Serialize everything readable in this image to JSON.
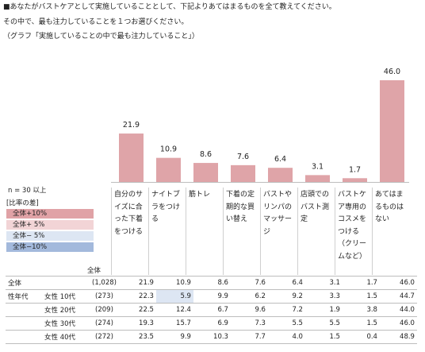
{
  "question": {
    "line1": "■あなたがバストケアとして実施していることとして、下記よりあてはまるものを全て教えてください。",
    "line2": "その中で、最も注力していることを１つお選びください。",
    "line3": "（グラフ「実施していることの中で最も注力していること」）"
  },
  "sample_note": "n = 30  以上",
  "legend": {
    "title": "[比率の差]",
    "items": [
      {
        "label": "全体+10%",
        "color": "#e0a2a6"
      },
      {
        "label": "全体+ 5%",
        "color": "#f2d4d6"
      },
      {
        "label": "全体− 5%",
        "color": "#dde6f3"
      },
      {
        "label": "全体−10%",
        "color": "#a3b9dc"
      }
    ]
  },
  "total_header": "全体",
  "chart_data": {
    "type": "bar",
    "categories": [
      "自分のサイズに合った下着をつける",
      "ナイトブラをつける",
      "筋トレ",
      "下着の定期的な買い替え",
      "バストやリンパのマッサージ",
      "店頭でのバスト測定",
      "バストケア専用のコスメをつける（クリームなど）",
      "あてはまるものはない"
    ],
    "values": [
      21.9,
      10.9,
      8.6,
      7.6,
      6.4,
      3.1,
      1.7,
      46.0
    ],
    "value_labels": [
      "21.9",
      "10.9",
      "8.6",
      "7.6",
      "6.4",
      "3.1",
      "1.7",
      "46.0"
    ],
    "bar_color": "#dfa4a8",
    "ylim": [
      0,
      46.0
    ]
  },
  "table": {
    "rows": [
      {
        "group": "全体",
        "sub": "",
        "n": "(1,028)",
        "vals": [
          "21.9",
          "10.9",
          "8.6",
          "7.6",
          "6.4",
          "3.1",
          "1.7",
          "46.0"
        ],
        "hl": [
          0,
          0,
          0,
          0,
          0,
          0,
          0,
          0
        ]
      },
      {
        "group": "性年代",
        "sub": "女性 10代",
        "n": "(273)",
        "vals": [
          "22.3",
          "5.9",
          "9.9",
          "6.2",
          "9.2",
          "3.3",
          "1.5",
          "44.7"
        ],
        "hl": [
          0,
          2,
          0,
          0,
          0,
          0,
          0,
          0
        ]
      },
      {
        "group": "",
        "sub": "女性 20代",
        "n": "(209)",
        "vals": [
          "22.5",
          "12.4",
          "6.7",
          "9.6",
          "7.2",
          "1.9",
          "3.8",
          "44.0"
        ],
        "hl": [
          0,
          0,
          0,
          0,
          0,
          0,
          0,
          0
        ]
      },
      {
        "group": "",
        "sub": "女性 30代",
        "n": "(274)",
        "vals": [
          "19.3",
          "15.7",
          "6.9",
          "7.3",
          "5.5",
          "5.5",
          "1.5",
          "46.0"
        ],
        "hl": [
          0,
          0,
          0,
          0,
          0,
          0,
          0,
          0
        ]
      },
      {
        "group": "",
        "sub": "女性 40代",
        "n": "(272)",
        "vals": [
          "23.5",
          "9.9",
          "10.3",
          "7.7",
          "4.0",
          "1.5",
          "0.4",
          "48.9"
        ],
        "hl": [
          0,
          0,
          0,
          0,
          0,
          0,
          0,
          0
        ]
      }
    ]
  }
}
